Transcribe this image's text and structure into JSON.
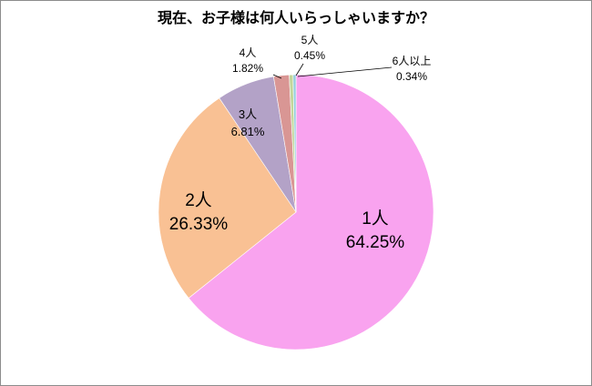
{
  "chart_data": {
    "type": "pie",
    "title": "現在、お子様は何人いらっしゃいますか？",
    "slices": [
      {
        "label": "1人",
        "value": 64.25,
        "value_text": "64.25%",
        "color": "#f9a3ef"
      },
      {
        "label": "2人",
        "value": 26.33,
        "value_text": "26.33%",
        "color": "#f9c194"
      },
      {
        "label": "3人",
        "value": 6.81,
        "value_text": "6.81%",
        "color": "#b3a2c7"
      },
      {
        "label": "4人",
        "value": 1.82,
        "value_text": "1.82%",
        "color": "#d99694"
      },
      {
        "label": "5人",
        "value": 0.45,
        "value_text": "0.45%",
        "color": "#c3d69b"
      },
      {
        "label": "6人以上",
        "value": 0.34,
        "value_text": "0.34%",
        "color": "#93cddd"
      }
    ],
    "start_angle": "12 o'clock",
    "direction": "clockwise",
    "legend": "none"
  }
}
